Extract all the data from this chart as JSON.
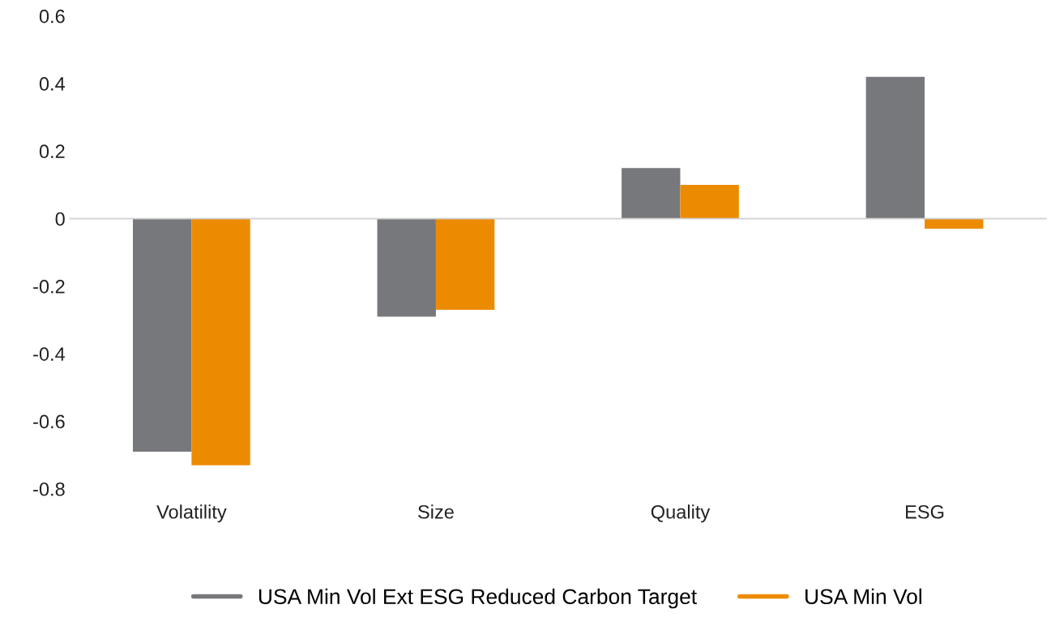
{
  "chart_data": {
    "type": "bar",
    "categories": [
      "Volatility",
      "Size",
      "Quality",
      "ESG"
    ],
    "series": [
      {
        "name": "USA Min Vol Ext ESG Reduced Carbon Target",
        "color": "#77787b",
        "values": [
          -0.69,
          -0.29,
          0.15,
          0.42
        ]
      },
      {
        "name": "USA Min Vol",
        "color": "#ed8b00",
        "values": [
          -0.73,
          -0.27,
          0.1,
          -0.03
        ]
      }
    ],
    "ylim": [
      -0.8,
      0.6
    ],
    "yticks": [
      -0.8,
      -0.6,
      -0.4,
      -0.2,
      0,
      0.2,
      0.4,
      0.6
    ],
    "ref_lines": [
      {
        "axis": "y",
        "value": 0,
        "color": "#d0d0d0"
      }
    ],
    "legend": "bottom"
  }
}
